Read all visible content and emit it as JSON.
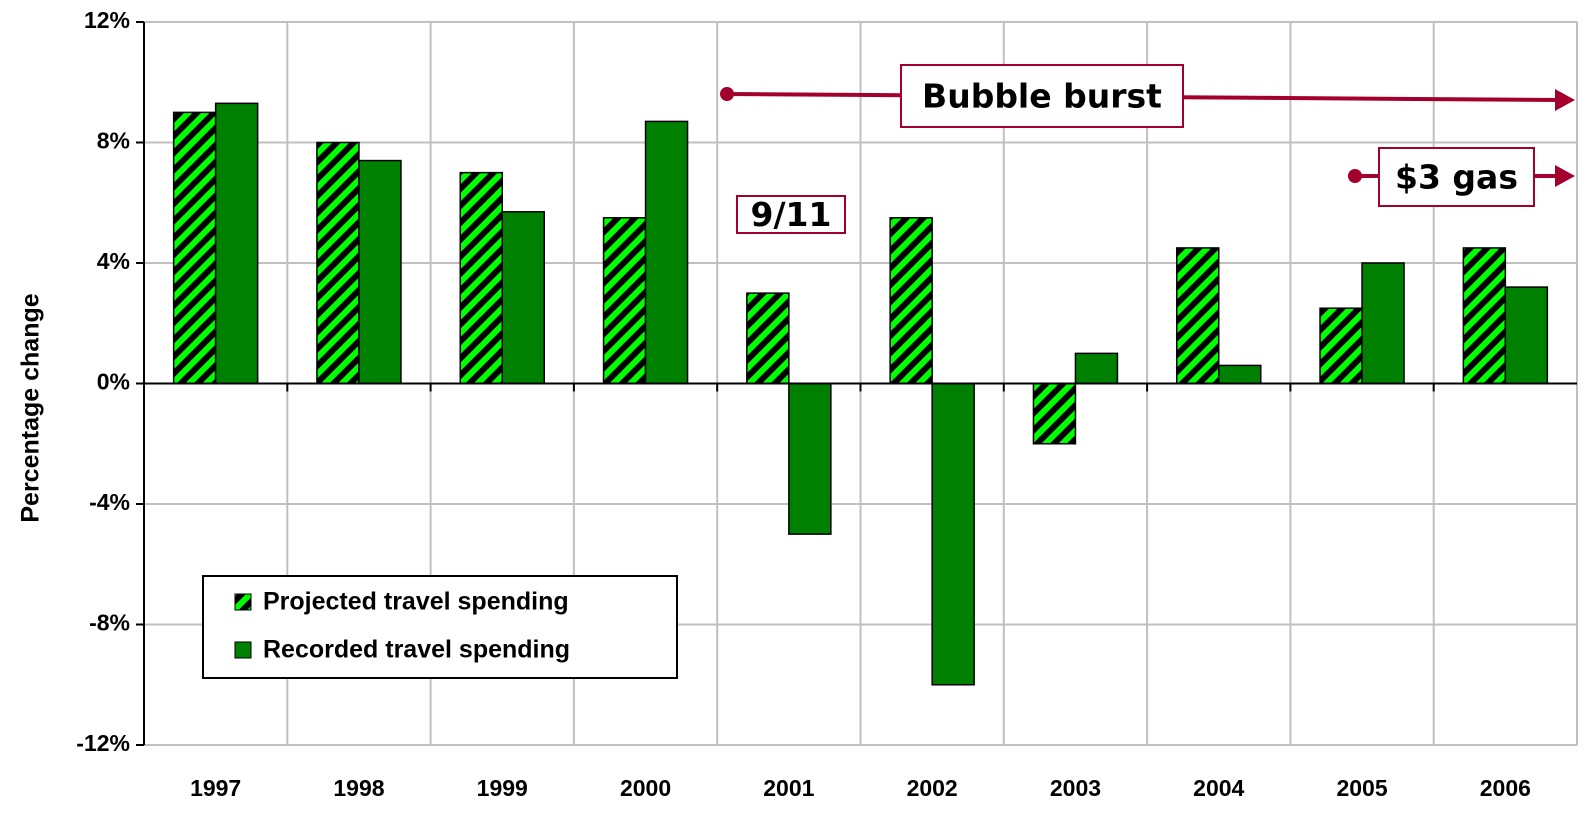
{
  "chart_data": {
    "type": "bar",
    "y_label": "Percentage change",
    "categories": [
      "1997",
      "1998",
      "1999",
      "2000",
      "2001",
      "2002",
      "2003",
      "2004",
      "2005",
      "2006"
    ],
    "series": [
      {
        "name": "Projected travel spending",
        "color": "#00ff00",
        "pattern": "hatch",
        "values": [
          9.0,
          8.0,
          7.0,
          5.5,
          3.0,
          5.5,
          -2.0,
          4.5,
          2.5,
          4.5
        ]
      },
      {
        "name": "Recorded travel spending",
        "color": "#008000",
        "values": [
          9.3,
          7.4,
          5.7,
          8.7,
          -5.0,
          -10.0,
          1.0,
          0.6,
          4.0,
          3.2
        ]
      }
    ],
    "ylim": [
      -12,
      12
    ],
    "yticks": [
      {
        "value": 12,
        "label": "12%"
      },
      {
        "value": 8,
        "label": "8%"
      },
      {
        "value": 4,
        "label": "4%"
      },
      {
        "value": 0,
        "label": "0%"
      },
      {
        "value": -4,
        "label": "-4%"
      },
      {
        "value": -8,
        "label": "-8%"
      },
      {
        "value": -12,
        "label": "-12%"
      }
    ],
    "grid": true,
    "annotations": [
      "Bubble burst",
      "$3 gas",
      "9/11"
    ]
  }
}
